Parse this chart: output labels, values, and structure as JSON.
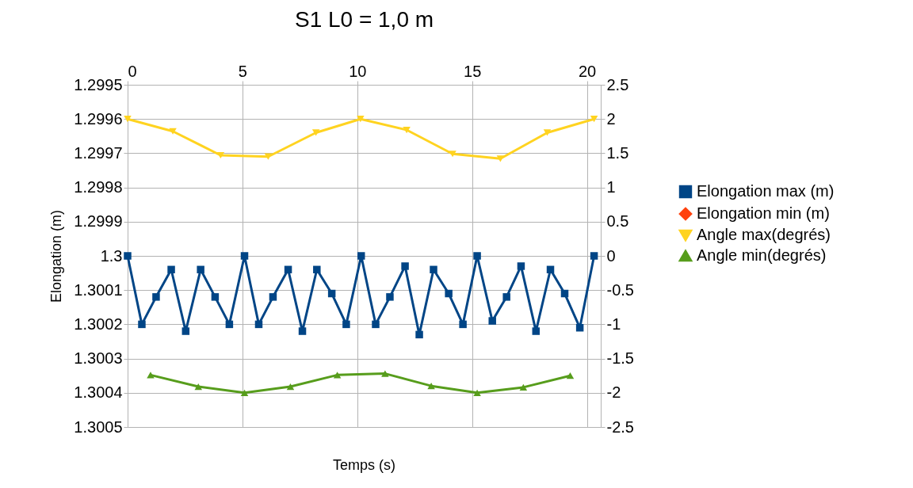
{
  "chart_data": {
    "type": "line",
    "title": "S1    L0 = 1,0 m",
    "xlabel": "Temps (s)",
    "ylabel": "Elongation (m)",
    "xlim": [
      0,
      20.6
    ],
    "xticks": [
      0,
      5,
      10,
      15,
      20
    ],
    "ylim": [
      1.3005,
      1.2995
    ],
    "yticks": [
      1.2995,
      1.2996,
      1.2997,
      1.2998,
      1.2999,
      1.3,
      1.3001,
      1.3002,
      1.3003,
      1.3004,
      1.3005
    ],
    "y2lim": [
      -2.5,
      2.5
    ],
    "y2ticks": [
      -2.5,
      -2,
      -1.5,
      -1,
      -0.5,
      0,
      0.5,
      1,
      1.5,
      2,
      2.5
    ],
    "grid": true,
    "legend": "right",
    "line_style": "solid",
    "series": [
      {
        "name": "Elongation max (m)",
        "color": "#004586",
        "marker": "square",
        "x": [
          0,
          0.62,
          1.24,
          1.9,
          2.53,
          3.18,
          3.81,
          4.43,
          5.09,
          5.71,
          6.33,
          6.99,
          7.61,
          8.24,
          8.89,
          9.52,
          10.17,
          10.8,
          11.42,
          12.08,
          12.7,
          13.32,
          13.98,
          14.6,
          15.22,
          15.88,
          16.5,
          17.13,
          17.78,
          18.41,
          19.03,
          19.69,
          20.31
        ],
        "values": [
          1.3,
          1.3002,
          1.30012,
          1.30004,
          1.30022,
          1.30004,
          1.30012,
          1.3002,
          1.3,
          1.3002,
          1.30012,
          1.30004,
          1.30022,
          1.30004,
          1.30011,
          1.3002,
          1.3,
          1.3002,
          1.30012,
          1.30003,
          1.30023,
          1.30004,
          1.30011,
          1.3002,
          1.3,
          1.30019,
          1.30012,
          1.30003,
          1.30022,
          1.30004,
          1.30011,
          1.30021,
          1.3
        ]
      },
      {
        "name": "Elongation min (m)",
        "color": "#ff420e",
        "marker": "diamond"
      },
      {
        "name": "Angle max(degrés)",
        "color": "#ffd320",
        "marker": "triangle-down",
        "axis": "y2",
        "x": [
          0,
          1.97,
          4.05,
          6.12,
          8.2,
          10.14,
          12.15,
          14.15,
          16.23,
          18.27,
          20.31
        ],
        "values": [
          2.0,
          1.82,
          1.47,
          1.45,
          1.8,
          2.0,
          1.84,
          1.49,
          1.42,
          1.8,
          2.0
        ]
      },
      {
        "name": "Angle min(degrés)",
        "color": "#579d1c",
        "marker": "triangle",
        "axis": "y2",
        "x": [
          1.0,
          3.08,
          5.09,
          7.09,
          9.13,
          11.21,
          13.22,
          15.22,
          17.23,
          19.27
        ],
        "values": [
          -1.74,
          -1.91,
          -2.0,
          -1.91,
          -1.74,
          -1.72,
          -1.9,
          -2.0,
          -1.92,
          -1.75
        ]
      }
    ]
  }
}
